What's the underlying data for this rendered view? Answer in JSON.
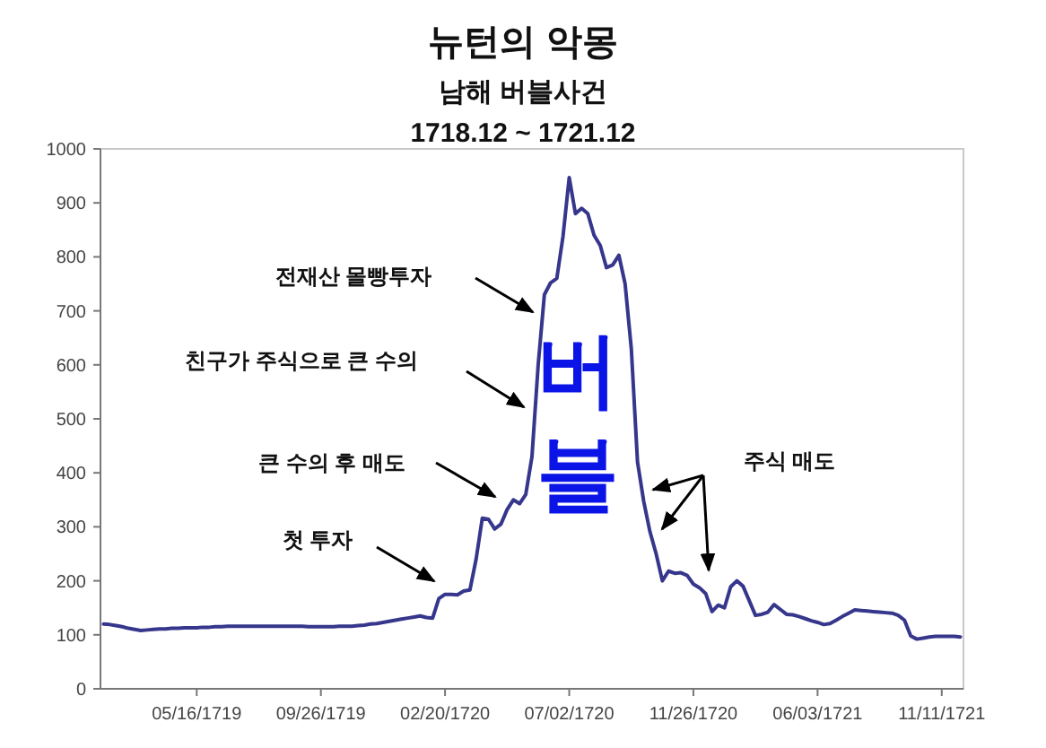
{
  "chart_data": {
    "type": "line",
    "title": "뉴턴의 악몽",
    "subtitle": "남해 버블사건",
    "categories": [
      null,
      null,
      null,
      null,
      null,
      null,
      null,
      null,
      null,
      null,
      null,
      null,
      null,
      null,
      null,
      "05/16/1719",
      null,
      null,
      null,
      null,
      null,
      null,
      null,
      null,
      null,
      null,
      null,
      null,
      null,
      null,
      null,
      null,
      null,
      null,
      null,
      "09/26/1719",
      null,
      null,
      null,
      null,
      null,
      null,
      null,
      null,
      null,
      null,
      null,
      null,
      null,
      null,
      null,
      null,
      null,
      null,
      null,
      "02/20/1720",
      null,
      null,
      null,
      null,
      null,
      null,
      null,
      null,
      null,
      null,
      null,
      null,
      null,
      null,
      null,
      null,
      null,
      null,
      null,
      "07/02/1720",
      null,
      null,
      null,
      null,
      null,
      null,
      null,
      null,
      null,
      null,
      null,
      null,
      null,
      null,
      null,
      null,
      null,
      null,
      null,
      "11/26/1720",
      null,
      null,
      null,
      null,
      null,
      null,
      null,
      null,
      null,
      null,
      null,
      null,
      null,
      null,
      null,
      null,
      null,
      null,
      null,
      "06/03/1721",
      null,
      null,
      null,
      null,
      null,
      null,
      null,
      null,
      null,
      null,
      null,
      null,
      null,
      null,
      null,
      null,
      null,
      null,
      null,
      "11/11/1721",
      null,
      null,
      null
    ],
    "series": [
      {
        "color": "#36368c",
        "values": [
          120,
          119,
          117,
          115,
          112,
          110,
          108,
          109,
          110,
          111,
          111,
          112,
          112,
          113,
          113,
          113,
          114,
          114,
          115,
          115,
          116,
          116,
          116,
          116,
          116,
          116,
          116,
          116,
          116,
          116,
          116,
          116,
          116,
          115,
          115,
          115,
          115,
          115,
          116,
          116,
          116,
          117,
          118,
          120,
          121,
          123,
          125,
          127,
          129,
          131,
          133,
          135,
          132,
          131,
          167,
          175,
          175,
          174,
          181,
          183,
          240,
          316,
          314,
          296,
          305,
          332,
          350,
          343,
          360,
          430,
          600,
          730,
          752,
          760,
          838,
          947,
          880,
          890,
          880,
          840,
          821,
          780,
          785,
          803,
          750,
          630,
          420,
          347,
          291,
          250,
          200,
          218,
          214,
          215,
          210,
          194,
          187,
          176,
          143,
          155,
          150,
          189,
          200,
          190,
          163,
          136,
          138,
          142,
          156,
          147,
          138,
          137,
          134,
          130,
          126,
          123,
          119,
          121,
          127,
          134,
          140,
          146,
          145,
          144,
          143,
          142,
          141,
          140,
          136,
          127,
          98,
          92,
          94,
          96,
          97,
          97,
          97,
          97,
          96
        ]
      }
    ],
    "ylim": [
      0,
      1000
    ],
    "yticks": [
      0,
      100,
      200,
      300,
      400,
      500,
      600,
      700,
      800,
      900,
      1000
    ],
    "marker": "none",
    "line_style": "solid",
    "annotations": [
      "1718.12 ~ 1721.12",
      "버블",
      "첫 투자",
      "큰 수의 후 매도",
      "친구가 주식으로 큰 수의",
      "전재산 몰빵투자",
      "주식 매도"
    ]
  }
}
